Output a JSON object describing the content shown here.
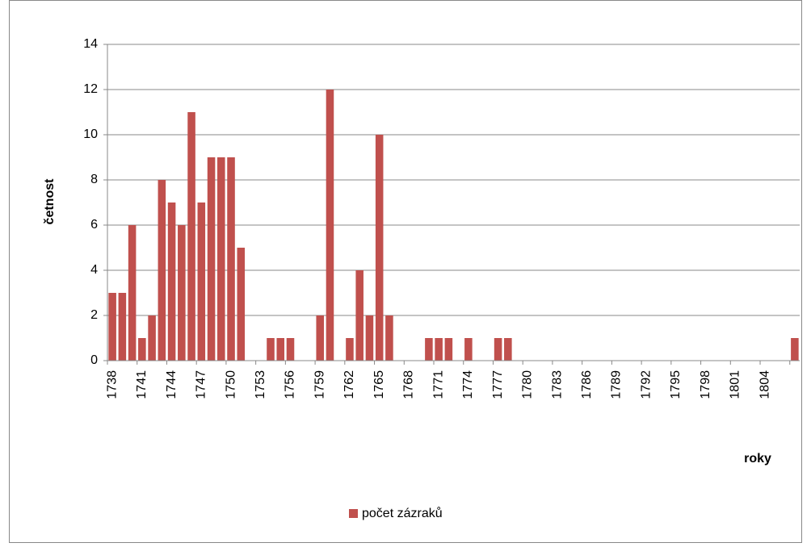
{
  "chart_data": {
    "type": "bar",
    "x_label": "roky",
    "y_label": "četnost",
    "categories": [
      "1738",
      null,
      null,
      "1741",
      null,
      null,
      "1744",
      null,
      null,
      "1747",
      null,
      null,
      "1750",
      null,
      null,
      "1753",
      null,
      null,
      "1756",
      null,
      null,
      "1759",
      null,
      null,
      "1762",
      null,
      null,
      "1765",
      null,
      null,
      "1768",
      null,
      null,
      "1771",
      null,
      null,
      "1774",
      null,
      null,
      "1777",
      null,
      null,
      "1780",
      null,
      null,
      "1783",
      null,
      null,
      "1786",
      null,
      null,
      "1789",
      null,
      null,
      "1792",
      null,
      null,
      "1795",
      null,
      null,
      "1798",
      null,
      null,
      "1801",
      null,
      null,
      "1804",
      null,
      null,
      null
    ],
    "series": [
      {
        "name": "počet zázraků",
        "color": "#c0504d",
        "values": [
          3,
          3,
          6,
          1,
          2,
          8,
          7,
          6,
          11,
          7,
          9,
          9,
          9,
          5,
          0,
          0,
          1,
          1,
          1,
          0,
          0,
          2,
          12,
          0,
          1,
          4,
          2,
          10,
          2,
          0,
          0,
          0,
          1,
          1,
          1,
          0,
          1,
          0,
          0,
          1,
          1,
          0,
          0,
          0,
          0,
          0,
          0,
          0,
          0,
          0,
          0,
          0,
          0,
          0,
          0,
          0,
          0,
          0,
          0,
          0,
          0,
          0,
          0,
          0,
          0,
          0,
          0,
          0,
          0,
          1
        ]
      }
    ],
    "ylim": [
      0,
      14
    ],
    "yticks": [
      0,
      2,
      4,
      6,
      8,
      10,
      12,
      14
    ],
    "grid": true
  }
}
